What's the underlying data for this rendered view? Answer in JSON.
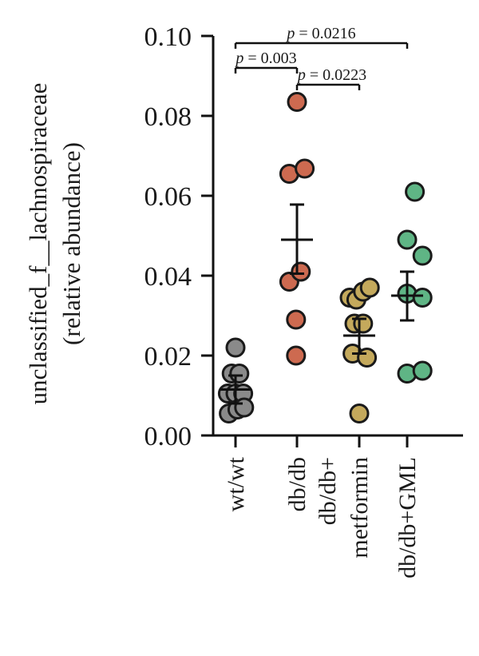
{
  "chart_data": {
    "type": "scatter",
    "ylabel_line1": "unclassified_f__lachnospiraceae",
    "ylabel_line2": "(relative abundance)",
    "ylim": [
      0.0,
      0.1
    ],
    "yticks": [
      0.0,
      0.02,
      0.04,
      0.06,
      0.08,
      0.1
    ],
    "ytick_labels": [
      "0.00",
      "0.02",
      "0.04",
      "0.06",
      "0.08",
      "0.10"
    ],
    "categories": [
      {
        "lines": [
          "wt/wt"
        ]
      },
      {
        "lines": [
          "db/db"
        ]
      },
      {
        "lines": [
          "db/db+",
          "metformin"
        ]
      },
      {
        "lines": [
          "db/db+GML"
        ]
      }
    ],
    "series": [
      {
        "color": "#8a8a8a",
        "mean": 0.0115,
        "sem_low": 0.008,
        "sem_high": 0.015,
        "points": [
          {
            "dx": 0,
            "y": 0.022
          },
          {
            "dx": -0.2,
            "y": 0.0155
          },
          {
            "dx": 0.2,
            "y": 0.0155
          },
          {
            "dx": -0.4,
            "y": 0.0105
          },
          {
            "dx": 0,
            "y": 0.0105
          },
          {
            "dx": 0.4,
            "y": 0.0105
          },
          {
            "dx": -0.35,
            "y": 0.0055
          },
          {
            "dx": 0.1,
            "y": 0.0065
          },
          {
            "dx": 0.45,
            "y": 0.007
          }
        ]
      },
      {
        "color": "#cd6a50",
        "mean": 0.049,
        "sem_low": 0.0405,
        "sem_high": 0.0578,
        "points": [
          {
            "dx": 0,
            "y": 0.0835
          },
          {
            "dx": -0.4,
            "y": 0.0655
          },
          {
            "dx": 0.4,
            "y": 0.0668
          },
          {
            "dx": -0.4,
            "y": 0.0385
          },
          {
            "dx": 0.2,
            "y": 0.041
          },
          {
            "dx": -0.05,
            "y": 0.029
          },
          {
            "dx": -0.05,
            "y": 0.02
          }
        ]
      },
      {
        "color": "#c4a95c",
        "mean": 0.025,
        "sem_low": 0.0205,
        "sem_high": 0.0292,
        "points": [
          {
            "dx": -0.5,
            "y": 0.0345
          },
          {
            "dx": -0.15,
            "y": 0.034
          },
          {
            "dx": 0.2,
            "y": 0.036
          },
          {
            "dx": 0.55,
            "y": 0.037
          },
          {
            "dx": -0.25,
            "y": 0.028
          },
          {
            "dx": 0.2,
            "y": 0.028
          },
          {
            "dx": -0.35,
            "y": 0.0205
          },
          {
            "dx": 0.4,
            "y": 0.0195
          },
          {
            "dx": 0,
            "y": 0.0055
          }
        ]
      },
      {
        "color": "#5fb585",
        "mean": 0.035,
        "sem_low": 0.0288,
        "sem_high": 0.041,
        "points": [
          {
            "dx": 0.4,
            "y": 0.061
          },
          {
            "dx": 0,
            "y": 0.049
          },
          {
            "dx": 0.8,
            "y": 0.045
          },
          {
            "dx": 0,
            "y": 0.0355
          },
          {
            "dx": 0.8,
            "y": 0.0345
          },
          {
            "dx": 0,
            "y": 0.0155
          },
          {
            "dx": 0.8,
            "y": 0.0162
          }
        ]
      }
    ],
    "comparisons": [
      {
        "from": 0,
        "to": 3,
        "p_prefix": "p",
        "p_value": " = 0.0216",
        "level": 2
      },
      {
        "from": 0,
        "to": 1,
        "p_prefix": "p",
        "p_value": " = 0.003",
        "level": 0
      },
      {
        "from": 1,
        "to": 2,
        "p_prefix": "p",
        "p_value": " = 0.0223",
        "level": 1
      }
    ]
  }
}
